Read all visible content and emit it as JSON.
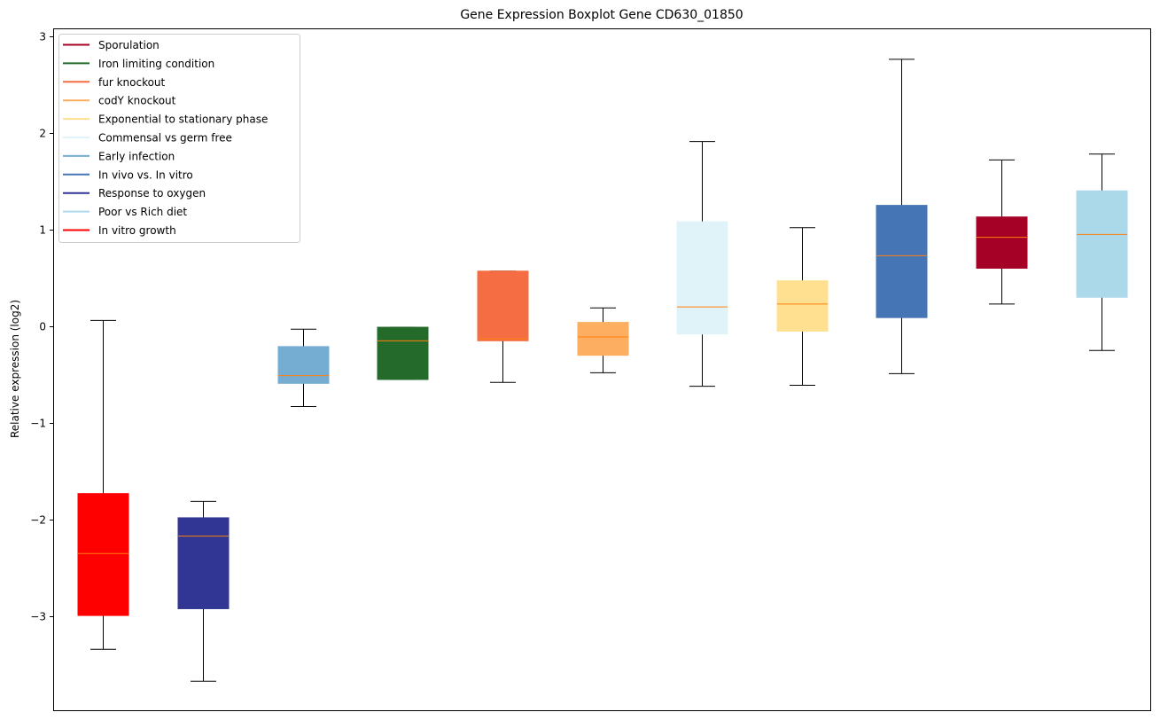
{
  "chart_data": {
    "type": "box",
    "title": "Gene Expression Boxplot Gene CD630_01850",
    "xlabel": "",
    "ylabel": "Relative expression (log2)",
    "ylim": [
      -3.97,
      3.08
    ],
    "yticks": [
      3,
      2,
      1,
      0,
      -1,
      -2,
      -3
    ],
    "ytick_labels": [
      "3",
      "2",
      "1",
      "0",
      "−1",
      "−2",
      "−3"
    ],
    "grid": false,
    "legend_position": "top-left",
    "median_color": "#ff7f0e",
    "legend": [
      {
        "label": "Sporulation",
        "color": "#a50026"
      },
      {
        "label": "Iron limiting condition",
        "color": "#246a2b"
      },
      {
        "label": "fur knockout",
        "color": "#f46d43"
      },
      {
        "label": "codY knockout",
        "color": "#fdae61"
      },
      {
        "label": "Exponential to stationary phase",
        "color": "#fee090"
      },
      {
        "label": "Commensal vs germ free",
        "color": "#e0f3f8"
      },
      {
        "label": "Early infection",
        "color": "#74add1"
      },
      {
        "label": "In vivo vs. In vitro",
        "color": "#4575b4"
      },
      {
        "label": "Response to oxygen",
        "color": "#313695"
      },
      {
        "label": "Poor vs Rich diet",
        "color": "#abd9e9"
      },
      {
        "label": "In vitro growth",
        "color": "#ff0000"
      }
    ],
    "boxes": [
      {
        "group": "In vitro growth",
        "color": "#ff0000",
        "whisker_low": -3.34,
        "q1": -2.99,
        "median": -2.35,
        "q3": -1.73,
        "whisker_high": 0.06
      },
      {
        "group": "Response to oxygen",
        "color": "#313695",
        "whisker_low": -3.67,
        "q1": -2.92,
        "median": -2.17,
        "q3": -1.98,
        "whisker_high": -1.81
      },
      {
        "group": "Early infection",
        "color": "#74add1",
        "whisker_low": -0.83,
        "q1": -0.59,
        "median": -0.51,
        "q3": -0.21,
        "whisker_high": -0.03
      },
      {
        "group": "Iron limiting condition",
        "color": "#246a2b",
        "whisker_low": -0.55,
        "q1": -0.55,
        "median": -0.15,
        "q3": -0.01,
        "whisker_high": -0.01
      },
      {
        "group": "fur knockout",
        "color": "#f46d43",
        "whisker_low": -0.58,
        "q1": -0.15,
        "median": -0.13,
        "q3": 0.57,
        "whisker_high": 0.57
      },
      {
        "group": "codY knockout",
        "color": "#fdae61",
        "whisker_low": -0.48,
        "q1": -0.3,
        "median": -0.11,
        "q3": 0.04,
        "whisker_high": 0.19
      },
      {
        "group": "Commensal vs germ free",
        "color": "#e0f3f8",
        "whisker_low": -0.62,
        "q1": -0.08,
        "median": 0.2,
        "q3": 1.08,
        "whisker_high": 1.91
      },
      {
        "group": "Exponential to stationary phase",
        "color": "#fee090",
        "whisker_low": -0.61,
        "q1": -0.05,
        "median": 0.23,
        "q3": 0.47,
        "whisker_high": 1.02
      },
      {
        "group": "In vivo vs. In vitro",
        "color": "#4575b4",
        "whisker_low": -0.49,
        "q1": 0.09,
        "median": 0.73,
        "q3": 1.25,
        "whisker_high": 2.76
      },
      {
        "group": "Sporulation",
        "color": "#a50026",
        "whisker_low": 0.23,
        "q1": 0.6,
        "median": 0.92,
        "q3": 1.13,
        "whisker_high": 1.72
      },
      {
        "group": "Poor vs Rich diet",
        "color": "#abd9e9",
        "whisker_low": -0.25,
        "q1": 0.3,
        "median": 0.95,
        "q3": 1.4,
        "whisker_high": 1.78
      }
    ]
  }
}
